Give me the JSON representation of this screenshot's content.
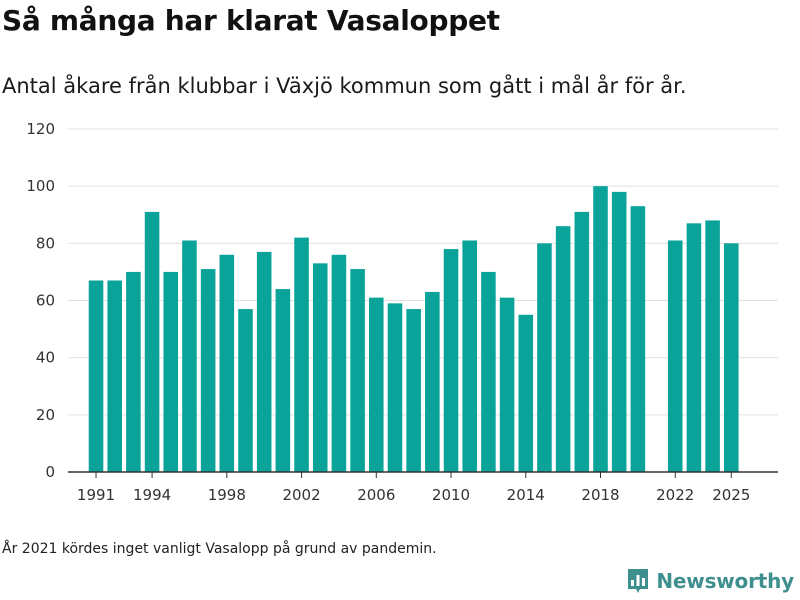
{
  "header": {
    "title": "Så många har klarat Vasaloppet",
    "subtitle": "Antal åkare från klubbar i Växjö kommun som gått i mål år för år."
  },
  "footer": {
    "note": "År 2021 kördes inget vanligt Vasalopp på grund av pandemin.",
    "brand": "Newsworthy"
  },
  "colors": {
    "bar": "#0aa39a",
    "grid": "#e0e0e0",
    "axis": "#333333",
    "brand": "#3f8f8e"
  },
  "icons": {
    "brand": "bar-chart-logo-icon"
  },
  "chart_data": {
    "type": "bar",
    "title": "Så många har klarat Vasaloppet",
    "subtitle": "Antal åkare från klubbar i Växjö kommun som gått i mål år för år.",
    "xlabel": "",
    "ylabel": "",
    "ylim": [
      0,
      120
    ],
    "yticks": [
      0,
      20,
      40,
      60,
      80,
      100,
      120
    ],
    "xticks": [
      1991,
      1994,
      1998,
      2002,
      2006,
      2010,
      2014,
      2018,
      2022,
      2025
    ],
    "xlim": [
      1989.5,
      2027.5
    ],
    "grid": true,
    "legend": "none",
    "categories": [
      1991,
      1992,
      1993,
      1994,
      1995,
      1996,
      1997,
      1998,
      1999,
      2000,
      2001,
      2002,
      2003,
      2004,
      2005,
      2006,
      2007,
      2008,
      2009,
      2010,
      2011,
      2012,
      2013,
      2014,
      2015,
      2016,
      2017,
      2018,
      2019,
      2020,
      2021,
      2022,
      2023,
      2024,
      2025
    ],
    "values": [
      67,
      67,
      70,
      91,
      70,
      81,
      71,
      76,
      57,
      77,
      64,
      82,
      73,
      76,
      71,
      61,
      59,
      57,
      63,
      78,
      81,
      70,
      61,
      55,
      80,
      86,
      91,
      100,
      98,
      93,
      null,
      81,
      87,
      88,
      80
    ]
  }
}
